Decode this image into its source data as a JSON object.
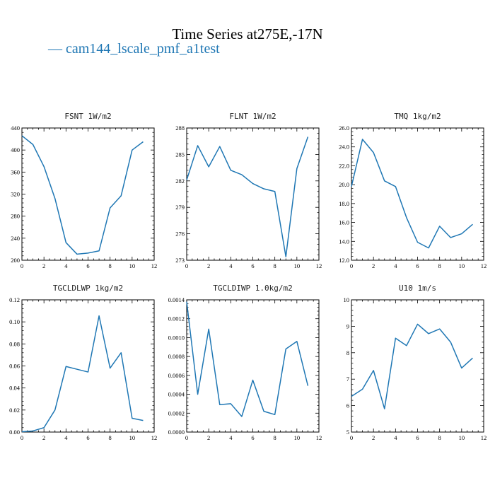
{
  "title": "Time Series at275E,-17N",
  "legend": {
    "marker": "—",
    "label": "cam144_lscale_pmf_a1test"
  },
  "colors": {
    "series": "#1f77b4",
    "axis": "#000000"
  },
  "chart_data": [
    {
      "type": "line",
      "title": "FSNT  1W/m2",
      "xlim": [
        0,
        12
      ],
      "xticks": [
        0,
        2,
        4,
        6,
        8,
        10,
        12
      ],
      "xlabels": [
        "0",
        "2",
        "4",
        "6",
        "8",
        "10",
        "12"
      ],
      "ylim": [
        200,
        440
      ],
      "yticks": [
        200,
        240,
        280,
        320,
        360,
        400,
        440
      ],
      "ylabels": [
        "200",
        "240",
        "280",
        "320",
        "360",
        "400",
        "440"
      ],
      "series": [
        {
          "x": [
            0,
            1,
            2,
            3,
            4,
            5,
            6,
            7,
            8,
            9,
            10,
            11
          ],
          "values": [
            426,
            410,
            370,
            312,
            232,
            211,
            213,
            217,
            295,
            317,
            400,
            415
          ]
        }
      ]
    },
    {
      "type": "line",
      "title": "FLNT  1W/m2",
      "xlim": [
        0,
        12
      ],
      "xticks": [
        0,
        2,
        4,
        6,
        8,
        10,
        12
      ],
      "xlabels": [
        "0",
        "2",
        "4",
        "6",
        "8",
        "10",
        "12"
      ],
      "ylim": [
        273,
        288
      ],
      "yticks": [
        273,
        276,
        279,
        282,
        285,
        288
      ],
      "ylabels": [
        "273",
        "276",
        "279",
        "282",
        "285",
        "288"
      ],
      "series": [
        {
          "x": [
            0,
            1,
            2,
            3,
            4,
            5,
            6,
            7,
            8,
            9,
            10,
            11
          ],
          "values": [
            282.1,
            286.0,
            283.6,
            285.9,
            283.2,
            282.7,
            281.7,
            281.1,
            280.8,
            273.4,
            283.4,
            287.0
          ]
        }
      ]
    },
    {
      "type": "line",
      "title": "TMQ  1kg/m2",
      "xlim": [
        0,
        12
      ],
      "xticks": [
        0,
        2,
        4,
        6,
        8,
        10,
        12
      ],
      "xlabels": [
        "0",
        "2",
        "4",
        "6",
        "8",
        "10",
        "12"
      ],
      "ylim": [
        12,
        26
      ],
      "yticks": [
        12,
        14,
        16,
        18,
        20,
        22,
        24,
        26
      ],
      "ylabels": [
        "12.0",
        "14.0",
        "16.0",
        "18.0",
        "20.0",
        "22.0",
        "24.0",
        "26.0"
      ],
      "series": [
        {
          "x": [
            0,
            1,
            2,
            3,
            4,
            5,
            6,
            7,
            8,
            9,
            10,
            11
          ],
          "values": [
            19.8,
            24.8,
            23.4,
            20.4,
            19.8,
            16.5,
            13.9,
            13.3,
            15.6,
            14.4,
            14.8,
            15.8
          ]
        }
      ]
    },
    {
      "type": "line",
      "title": "TGCLDLWP  1kg/m2",
      "xlim": [
        0,
        12
      ],
      "xticks": [
        0,
        2,
        4,
        6,
        8,
        10,
        12
      ],
      "xlabels": [
        "0",
        "2",
        "4",
        "6",
        "8",
        "10",
        "12"
      ],
      "ylim": [
        0,
        0.12
      ],
      "yticks": [
        0,
        0.02,
        0.04,
        0.06,
        0.08,
        0.1,
        0.12
      ],
      "ylabels": [
        "0.00",
        "0.02",
        "0.04",
        "0.06",
        "0.08",
        "0.10",
        "0.12"
      ],
      "series": [
        {
          "x": [
            0,
            1,
            2,
            3,
            4,
            5,
            6,
            7,
            8,
            9,
            10,
            11
          ],
          "values": [
            0.0003,
            0.001,
            0.004,
            0.02,
            0.0595,
            0.057,
            0.0545,
            0.1055,
            0.058,
            0.072,
            0.0125,
            0.0105
          ]
        }
      ]
    },
    {
      "type": "line",
      "title": "TGCLDIWP  1.0kg/m2",
      "xlim": [
        0,
        12
      ],
      "xticks": [
        0,
        2,
        4,
        6,
        8,
        10,
        12
      ],
      "xlabels": [
        "0",
        "2",
        "4",
        "6",
        "8",
        "10",
        "12"
      ],
      "ylim": [
        0,
        0.0014
      ],
      "yticks": [
        0,
        0.0002,
        0.0004,
        0.0006,
        0.0008,
        0.001,
        0.0012,
        0.0014
      ],
      "ylabels": [
        "0.0000",
        "0.0002",
        "0.0004",
        "0.0006",
        "0.0008",
        "0.0010",
        "0.0012",
        "0.0014"
      ],
      "series": [
        {
          "x": [
            0,
            1,
            2,
            3,
            4,
            5,
            6,
            7,
            8,
            9,
            10,
            11
          ],
          "values": [
            0.00138,
            0.0004,
            0.00109,
            0.00029,
            0.0003,
            0.000165,
            0.00055,
            0.00022,
            0.000185,
            0.00088,
            0.00096,
            0.00049
          ]
        }
      ]
    },
    {
      "type": "line",
      "title": "U10  1m/s",
      "xlim": [
        0,
        12
      ],
      "xticks": [
        0,
        2,
        4,
        6,
        8,
        10,
        12
      ],
      "xlabels": [
        "0",
        "2",
        "4",
        "6",
        "8",
        "10",
        "12"
      ],
      "ylim": [
        5,
        10
      ],
      "yticks": [
        5,
        6,
        7,
        8,
        9,
        10
      ],
      "ylabels": [
        "5",
        "6",
        "7",
        "8",
        "9",
        "10"
      ],
      "series": [
        {
          "x": [
            0,
            1,
            2,
            3,
            4,
            5,
            6,
            7,
            8,
            9,
            10,
            11
          ],
          "values": [
            6.35,
            6.62,
            7.33,
            5.88,
            8.55,
            8.27,
            9.08,
            8.72,
            8.9,
            8.4,
            7.42,
            7.8
          ]
        }
      ]
    }
  ]
}
